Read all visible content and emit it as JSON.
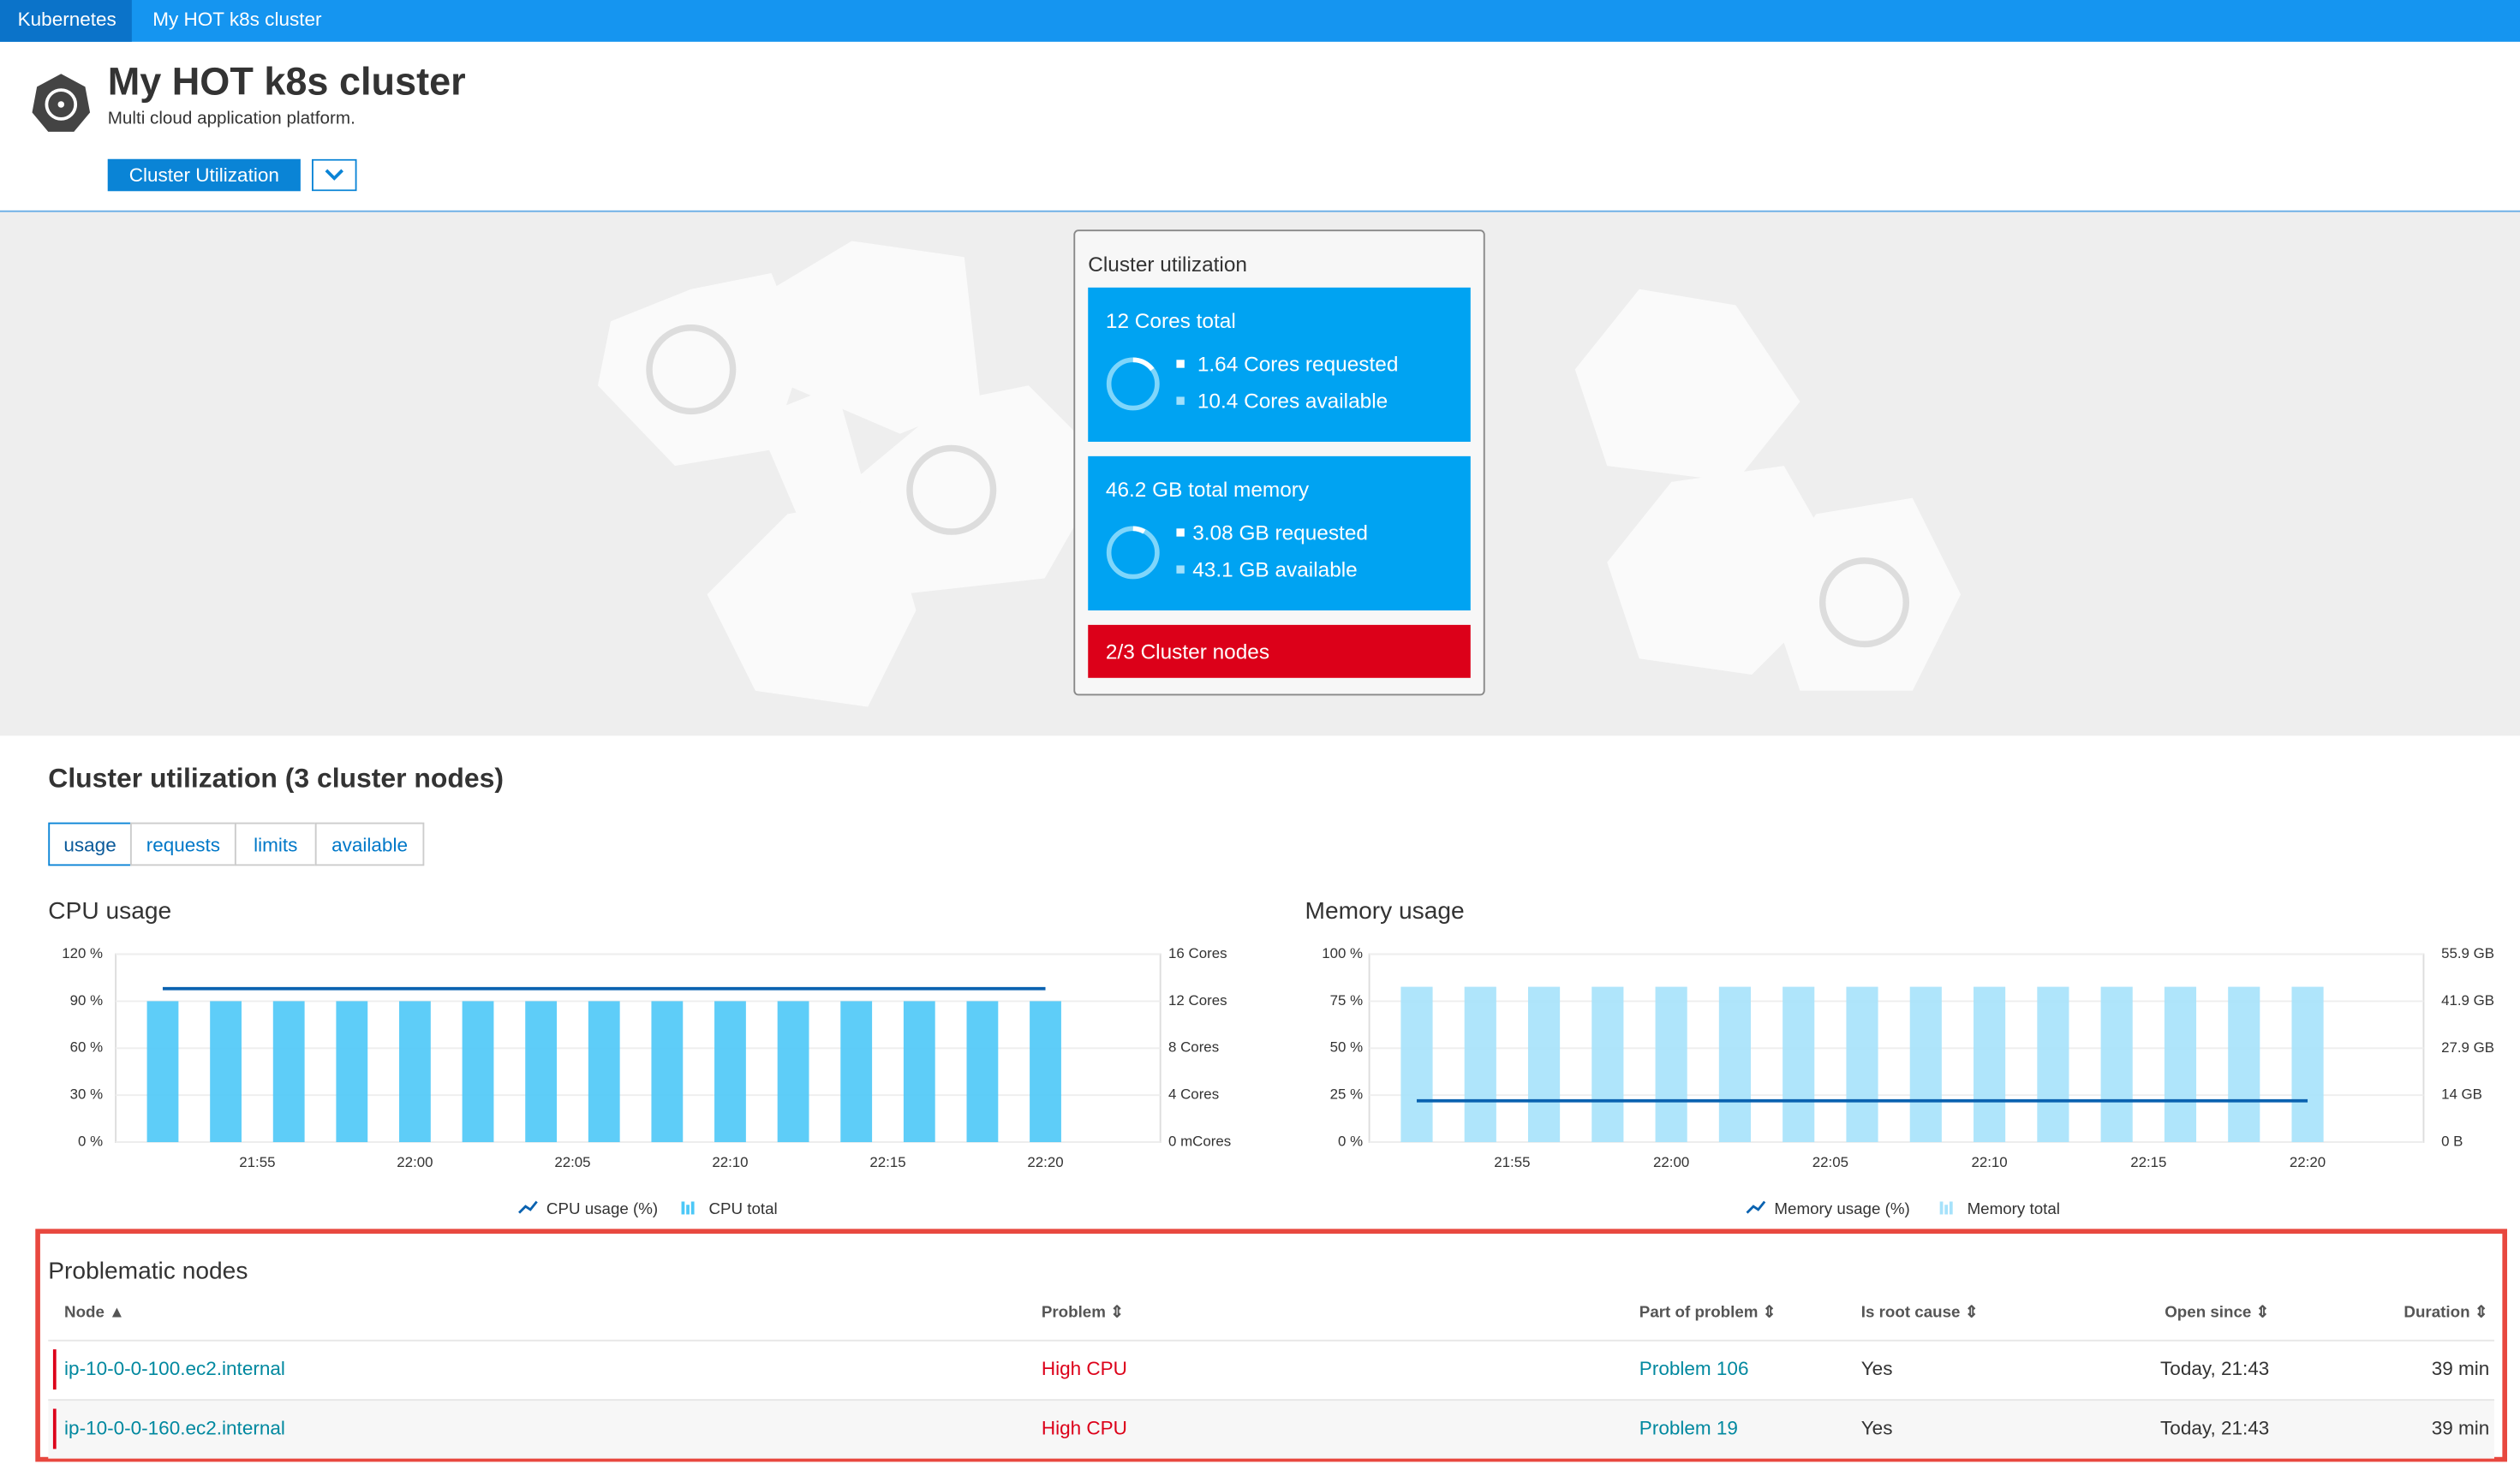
{
  "breadcrumb": [
    "Kubernetes",
    "My HOT k8s cluster"
  ],
  "header": {
    "title": "My HOT k8s cluster",
    "subtitle": "Multi cloud application platform.",
    "button": "Cluster Utilization"
  },
  "utilization_card": {
    "title": "Cluster utilization",
    "cpu": {
      "total": "12 Cores total",
      "requested": "1.64 Cores requested",
      "available": "10.4 Cores available"
    },
    "memory": {
      "total": "46.2 GB total memory",
      "requested": "3.08 GB requested",
      "available": "43.1 GB available"
    },
    "nodes": "2/3 Cluster nodes"
  },
  "section": {
    "title": "Cluster utilization (3 cluster nodes)",
    "tabs": [
      "usage",
      "requests",
      "limits",
      "available"
    ]
  },
  "charts": [
    {
      "type": "bar_line",
      "title": "CPU usage",
      "categories": [
        null,
        null,
        null,
        "21:55",
        null,
        null,
        null,
        null,
        "22:00",
        null,
        null,
        null,
        null,
        "22:05",
        null,
        null,
        null,
        null,
        "22:10",
        null,
        null,
        null,
        null,
        "22:15",
        null,
        null,
        null,
        null,
        "22:20"
      ],
      "ylim": [
        0,
        120
      ],
      "yticks": [
        {
          "value": 0,
          "label": "0 %"
        },
        {
          "value": 30,
          "label": "30 %"
        },
        {
          "value": 60,
          "label": "60 %"
        },
        {
          "value": 90,
          "label": "90 %"
        },
        {
          "value": 120,
          "label": "120 %"
        }
      ],
      "y2lim": [
        0,
        16
      ],
      "y2ticks": [
        {
          "value": 0,
          "label": "0 mCores"
        },
        {
          "value": 4,
          "label": "4 Cores"
        },
        {
          "value": 8,
          "label": "8 Cores"
        },
        {
          "value": 12,
          "label": "12 Cores"
        },
        {
          "value": 16,
          "label": "16 Cores"
        }
      ],
      "series": [
        {
          "name": "CPU usage (%)",
          "kind": "line",
          "color": "#0a62b0",
          "values": [
            98,
            98,
            98,
            98,
            98,
            98,
            98,
            98,
            98,
            98,
            98,
            98,
            98,
            98,
            98,
            98,
            98,
            98,
            98,
            98,
            98,
            98,
            98,
            98,
            98,
            98,
            98,
            98,
            98
          ]
        },
        {
          "name": "CPU total",
          "kind": "bar",
          "axis": "y2",
          "color": "#4cc8f7",
          "values": [
            12,
            null,
            12,
            null,
            12,
            null,
            12,
            null,
            12,
            null,
            12,
            null,
            12,
            null,
            12,
            null,
            12,
            null,
            12,
            null,
            12,
            null,
            12,
            null,
            12,
            null,
            12,
            null,
            12
          ]
        }
      ]
    },
    {
      "type": "bar_line",
      "title": "Memory usage",
      "categories": [
        null,
        null,
        null,
        "21:55",
        null,
        null,
        null,
        null,
        "22:00",
        null,
        null,
        null,
        null,
        "22:05",
        null,
        null,
        null,
        null,
        "22:10",
        null,
        null,
        null,
        null,
        "22:15",
        null,
        null,
        null,
        null,
        "22:20"
      ],
      "ylim": [
        0,
        100
      ],
      "yticks": [
        {
          "value": 0,
          "label": "0 %"
        },
        {
          "value": 25,
          "label": "25 %"
        },
        {
          "value": 50,
          "label": "50 %"
        },
        {
          "value": 75,
          "label": "75 %"
        },
        {
          "value": 100,
          "label": "100 %"
        }
      ],
      "y2lim": [
        0,
        55.9
      ],
      "y2ticks": [
        {
          "value": 0,
          "label": "0 B"
        },
        {
          "value": 14,
          "label": "14 GB"
        },
        {
          "value": 27.9,
          "label": "27.9 GB"
        },
        {
          "value": 41.9,
          "label": "41.9 GB"
        },
        {
          "value": 55.9,
          "label": "55.9 GB"
        }
      ],
      "series": [
        {
          "name": "Memory usage (%)",
          "kind": "line",
          "color": "#0a62b0",
          "values": [
            22,
            22,
            22,
            22,
            22,
            22,
            22,
            22,
            22,
            22,
            22,
            22,
            22,
            22,
            22,
            22,
            22,
            22,
            22,
            22,
            22,
            22,
            22,
            22,
            22,
            22,
            22,
            22,
            22
          ]
        },
        {
          "name": "Memory total",
          "kind": "bar",
          "axis": "y2",
          "color": "#a6e2fb",
          "values": [
            46.2,
            null,
            46.2,
            null,
            46.2,
            null,
            46.2,
            null,
            46.2,
            null,
            46.2,
            null,
            46.2,
            null,
            46.2,
            null,
            46.2,
            null,
            46.2,
            null,
            46.2,
            null,
            46.2,
            null,
            46.2,
            null,
            46.2,
            null,
            46.2
          ]
        }
      ]
    }
  ],
  "problems": {
    "title": "Problematic nodes",
    "columns": [
      "Node",
      "Problem",
      "Part of problem",
      "Is root cause",
      "Open since",
      "Duration"
    ],
    "rows": [
      [
        "ip-10-0-0-100.ec2.internal",
        "High CPU",
        "Problem 106",
        "Yes",
        "Today, 21:43",
        "39 min"
      ],
      [
        "ip-10-0-0-160.ec2.internal",
        "High CPU",
        "Problem 19",
        "Yes",
        "Today, 21:43",
        "39 min"
      ]
    ]
  }
}
